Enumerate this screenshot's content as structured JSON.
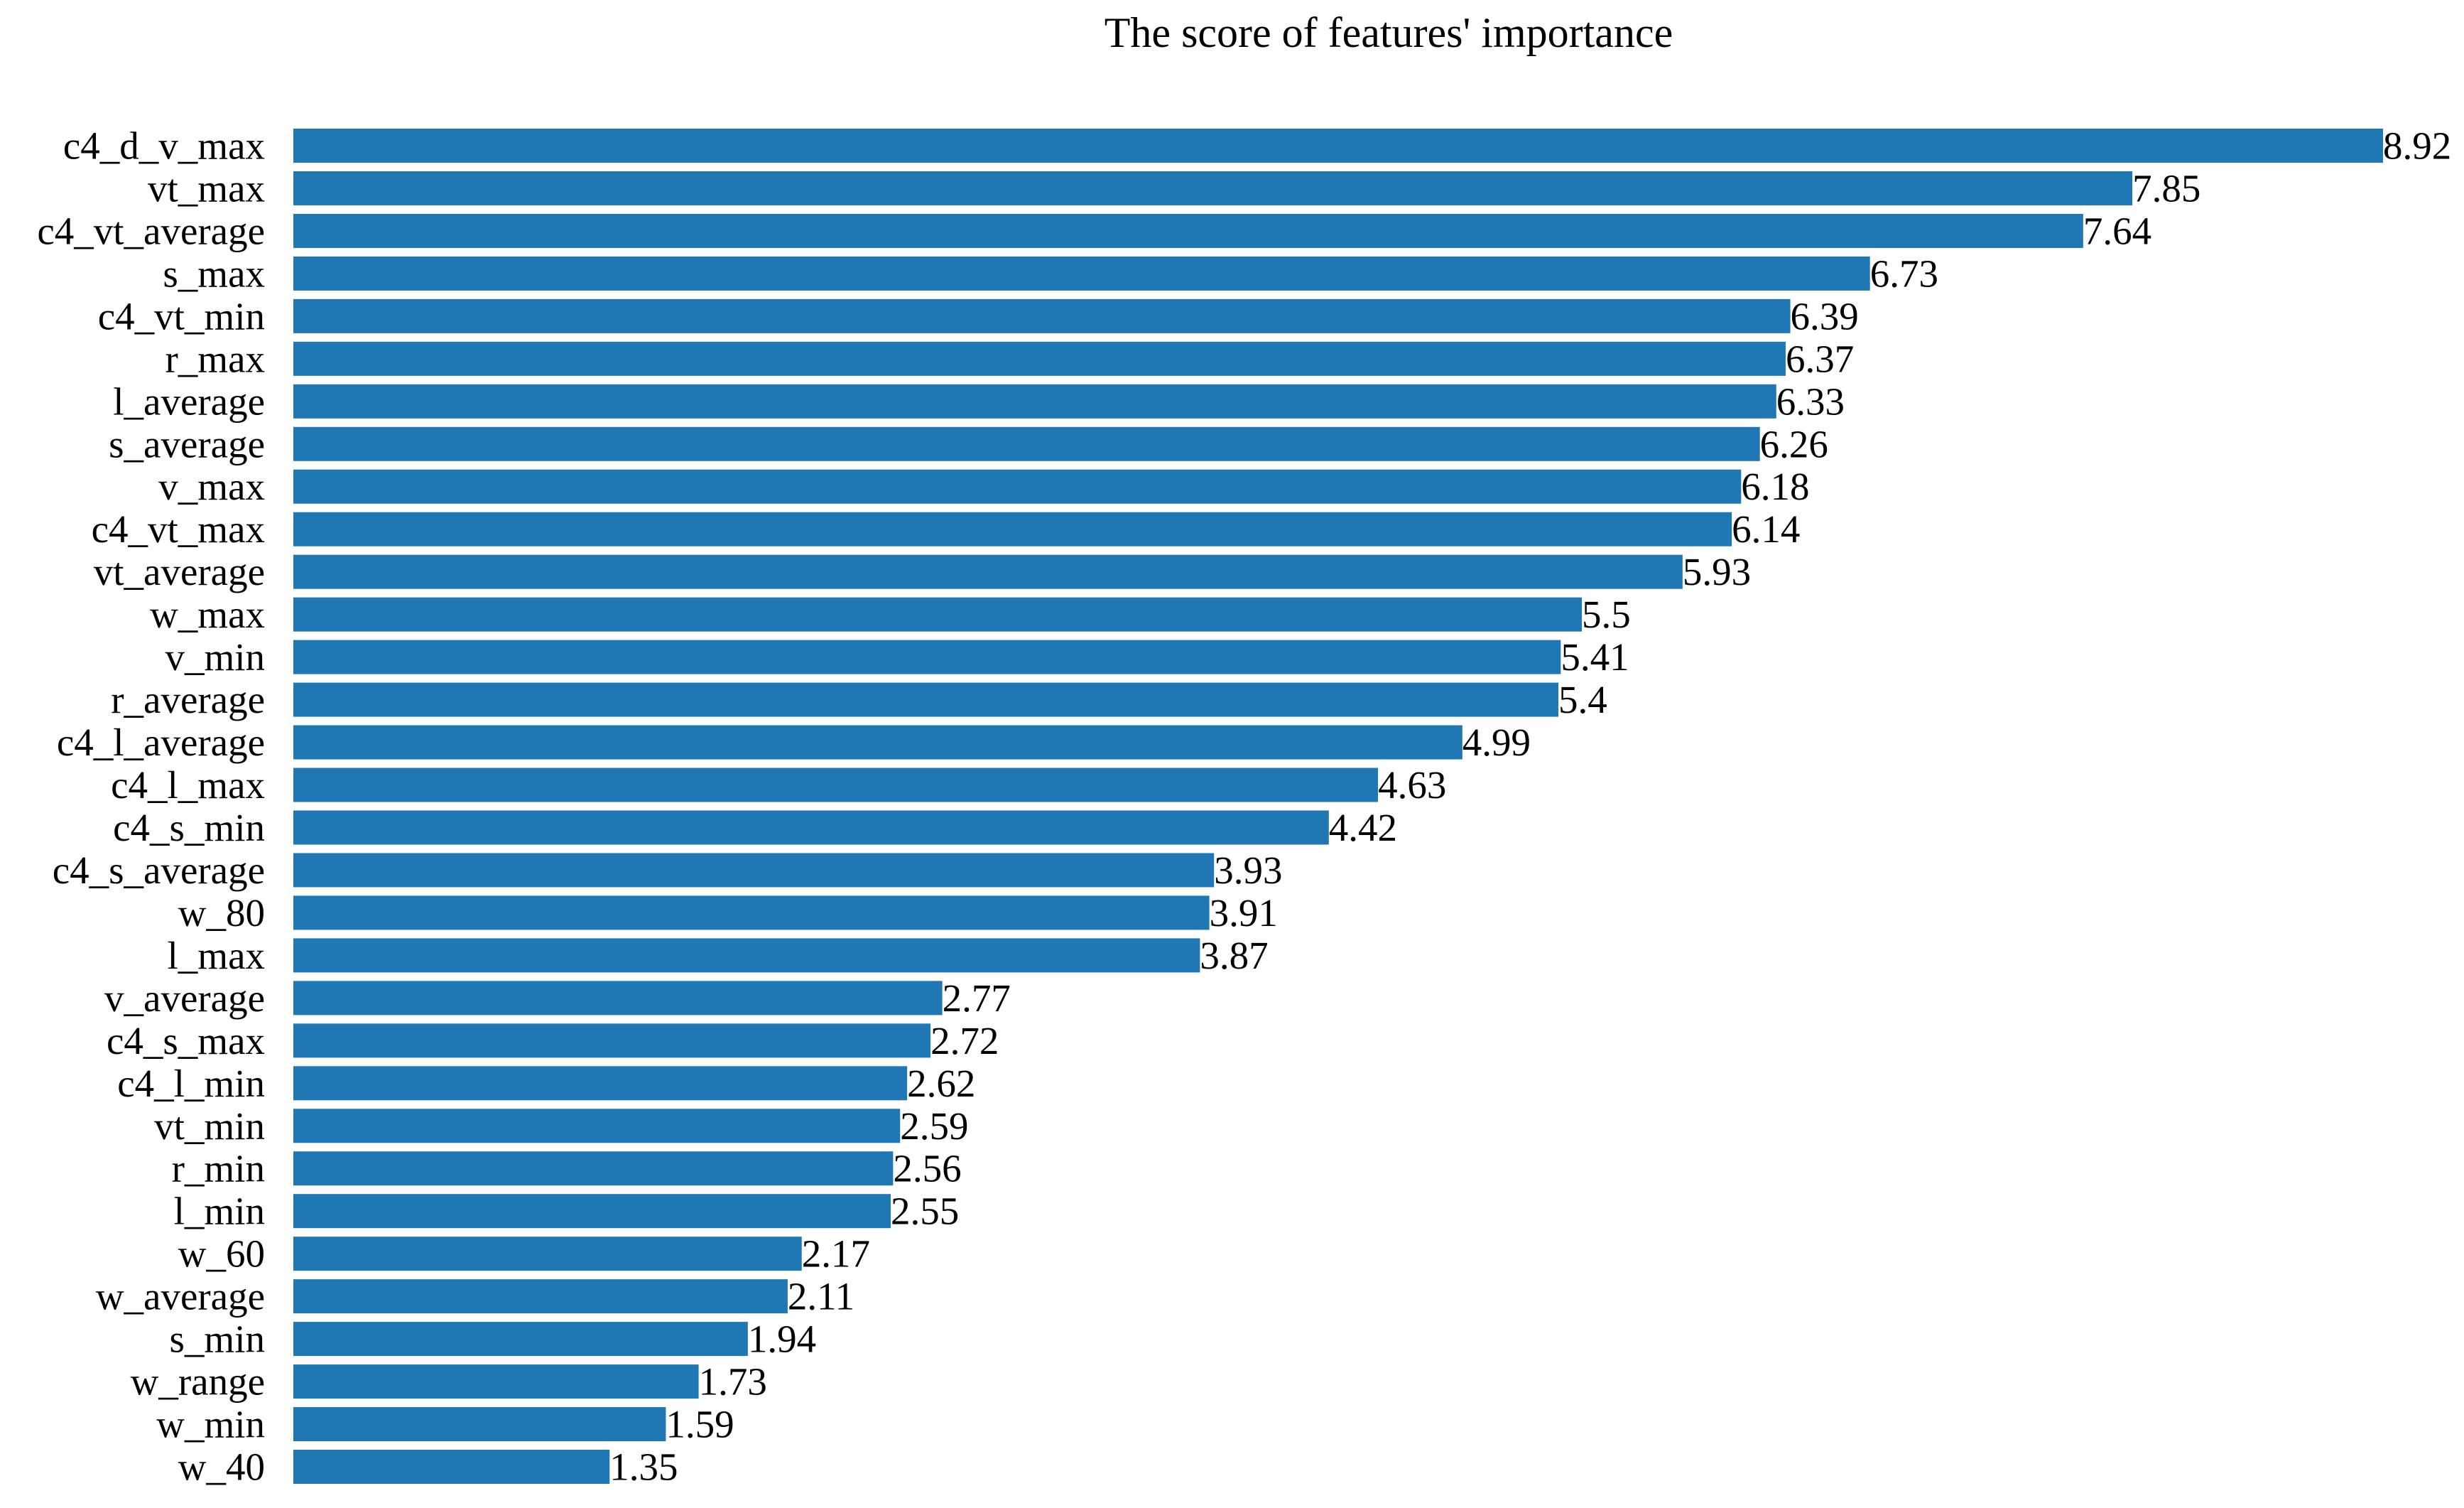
{
  "chart_data": {
    "type": "bar",
    "orientation": "horizontal",
    "title": "The score of features' importance",
    "xlabel": "",
    "ylabel": "",
    "grid": false,
    "axes_visible": false,
    "xlim": [
      0,
      8.92
    ],
    "bar_color": "#1f77b4",
    "categories": [
      "c4_d_v_max",
      "vt_max",
      "c4_vt_average",
      "s_max",
      "c4_vt_min",
      "r_max",
      "l_average",
      "s_average",
      "v_max",
      "c4_vt_max",
      "vt_average",
      "w_max",
      "v_min",
      "r_average",
      "c4_l_average",
      "c4_l_max",
      "c4_s_min",
      "c4_s_average",
      "w_80",
      "l_max",
      "v_average",
      "c4_s_max",
      "c4_l_min",
      "vt_min",
      "r_min",
      "l_min",
      "w_60",
      "w_average",
      "s_min",
      "w_range",
      "w_min",
      "w_40"
    ],
    "values": [
      8.92,
      7.85,
      7.64,
      6.73,
      6.39,
      6.37,
      6.33,
      6.26,
      6.18,
      6.14,
      5.93,
      5.5,
      5.41,
      5.4,
      4.99,
      4.63,
      4.42,
      3.93,
      3.91,
      3.87,
      2.77,
      2.72,
      2.62,
      2.59,
      2.56,
      2.55,
      2.17,
      2.11,
      1.94,
      1.73,
      1.59,
      1.35
    ],
    "value_labels": [
      "8.92",
      "7.85",
      "7.64",
      "6.73",
      "6.39",
      "6.37",
      "6.33",
      "6.26",
      "6.18",
      "6.14",
      "5.93",
      "5.5",
      "5.41",
      "5.4",
      "4.99",
      "4.63",
      "4.42",
      "3.93",
      "3.91",
      "3.87",
      "2.77",
      "2.72",
      "2.62",
      "2.59",
      "2.56",
      "2.55",
      "2.17",
      "2.11",
      "1.94",
      "1.73",
      "1.59",
      "1.35"
    ]
  }
}
